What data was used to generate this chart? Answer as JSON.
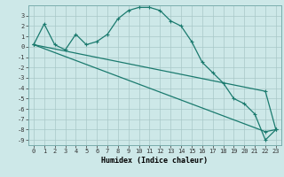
{
  "title": "",
  "xlabel": "Humidex (Indice chaleur)",
  "background_color": "#cde8e8",
  "grid_color": "#a8c8c8",
  "line_color": "#1a7a6e",
  "xlim": [
    -0.5,
    23.5
  ],
  "ylim": [
    -9.5,
    4.0
  ],
  "xticks": [
    0,
    1,
    2,
    3,
    4,
    5,
    6,
    7,
    8,
    9,
    10,
    11,
    12,
    13,
    14,
    15,
    16,
    17,
    18,
    19,
    20,
    21,
    22,
    23
  ],
  "yticks": [
    3,
    2,
    1,
    0,
    -1,
    -2,
    -3,
    -4,
    -5,
    -6,
    -7,
    -8,
    -9
  ],
  "line1_x": [
    0,
    1,
    2,
    3,
    4,
    5,
    6,
    7,
    8,
    9,
    10,
    11,
    12,
    13,
    14,
    15,
    16,
    17,
    18,
    19,
    20,
    21,
    22,
    23
  ],
  "line1_y": [
    0.2,
    2.2,
    0.2,
    -0.3,
    1.2,
    0.2,
    0.5,
    1.2,
    2.7,
    3.5,
    3.8,
    3.8,
    3.5,
    2.5,
    2.0,
    0.5,
    -1.5,
    -2.5,
    -3.5,
    -5.0,
    -5.5,
    -6.5,
    -9.0,
    -8.0
  ],
  "line2_x": [
    0,
    22,
    23
  ],
  "line2_y": [
    0.2,
    -8.2,
    -8.0
  ],
  "line3_x": [
    0,
    22,
    23
  ],
  "line3_y": [
    0.2,
    -4.3,
    -8.0
  ],
  "fontsize_ticks": 5,
  "fontsize_xlabel": 6,
  "lw": 0.9,
  "markersize": 2.5
}
